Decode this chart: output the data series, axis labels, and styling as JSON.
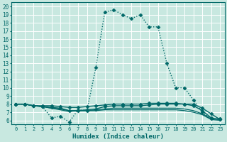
{
  "xlabel": "Humidex (Indice chaleur)",
  "xlim": [
    -0.5,
    23.5
  ],
  "ylim": [
    5.5,
    20.5
  ],
  "xticks": [
    0,
    1,
    2,
    3,
    4,
    5,
    6,
    7,
    8,
    9,
    10,
    11,
    12,
    13,
    14,
    15,
    16,
    17,
    18,
    19,
    20,
    21,
    22,
    23
  ],
  "yticks": [
    6,
    7,
    8,
    9,
    10,
    11,
    12,
    13,
    14,
    15,
    16,
    17,
    18,
    19,
    20
  ],
  "bg_color": "#c8e8e0",
  "grid_color": "#ffffff",
  "line_color": "#006868",
  "series": [
    {
      "x": [
        0,
        1,
        2,
        3,
        4,
        5,
        6,
        7,
        8,
        9,
        10,
        11,
        12,
        13,
        14,
        15,
        16,
        17,
        18,
        19,
        20,
        21,
        22,
        23
      ],
      "y": [
        8.0,
        8.0,
        7.8,
        7.7,
        6.3,
        6.5,
        5.8,
        7.3,
        7.2,
        12.5,
        19.3,
        19.6,
        19.0,
        18.5,
        19.0,
        17.5,
        17.5,
        13.0,
        10.0,
        10.0,
        8.5,
        7.0,
        6.2,
        6.2
      ],
      "marker": "D",
      "linestyle": ":",
      "markersize": 2.5,
      "linewidth": 1.0
    },
    {
      "x": [
        0,
        1,
        2,
        3,
        4,
        5,
        6,
        7,
        8,
        9,
        10,
        11,
        12,
        13,
        14,
        15,
        16,
        17,
        18,
        19,
        20,
        21,
        22,
        23
      ],
      "y": [
        8.0,
        8.0,
        7.8,
        7.8,
        7.8,
        7.7,
        7.6,
        7.6,
        7.7,
        7.8,
        7.9,
        8.0,
        8.0,
        8.0,
        8.0,
        8.1,
        8.1,
        8.1,
        8.1,
        8.0,
        7.8,
        7.2,
        6.3,
        6.1
      ],
      "marker": "D",
      "linestyle": "-",
      "markersize": 2.5,
      "linewidth": 1.0
    },
    {
      "x": [
        0,
        1,
        2,
        3,
        4,
        5,
        6,
        7,
        8,
        9,
        10,
        11,
        12,
        13,
        14,
        15,
        16,
        17,
        18,
        19,
        20,
        21,
        22,
        23
      ],
      "y": [
        8.0,
        8.0,
        7.8,
        7.7,
        7.5,
        7.3,
        7.1,
        7.2,
        7.2,
        7.3,
        7.4,
        7.5,
        7.5,
        7.5,
        7.5,
        7.5,
        7.5,
        7.5,
        7.5,
        7.4,
        7.2,
        6.8,
        6.2,
        6.1
      ],
      "marker": null,
      "linestyle": "-",
      "markersize": 0,
      "linewidth": 0.9
    },
    {
      "x": [
        0,
        1,
        2,
        3,
        4,
        5,
        6,
        7,
        8,
        9,
        10,
        11,
        12,
        13,
        14,
        15,
        16,
        17,
        18,
        19,
        20,
        21,
        22,
        23
      ],
      "y": [
        8.0,
        8.0,
        7.8,
        7.7,
        7.5,
        7.4,
        7.2,
        7.2,
        7.2,
        7.2,
        7.3,
        7.3,
        7.3,
        7.3,
        7.3,
        7.3,
        7.3,
        7.3,
        7.3,
        7.2,
        7.0,
        6.7,
        6.1,
        6.0
      ],
      "marker": null,
      "linestyle": "-",
      "markersize": 0,
      "linewidth": 0.9
    },
    {
      "x": [
        0,
        1,
        2,
        3,
        4,
        5,
        6,
        7,
        8,
        9,
        10,
        11,
        12,
        13,
        14,
        15,
        16,
        17,
        18,
        19,
        20,
        21,
        22,
        23
      ],
      "y": [
        8.0,
        8.0,
        7.8,
        7.7,
        7.6,
        7.5,
        7.2,
        7.2,
        7.3,
        7.4,
        7.7,
        7.8,
        7.8,
        7.8,
        7.8,
        7.9,
        8.0,
        8.0,
        8.0,
        8.0,
        8.0,
        7.5,
        6.8,
        6.1
      ],
      "marker": "D",
      "linestyle": "-",
      "markersize": 2.5,
      "linewidth": 1.0
    }
  ]
}
